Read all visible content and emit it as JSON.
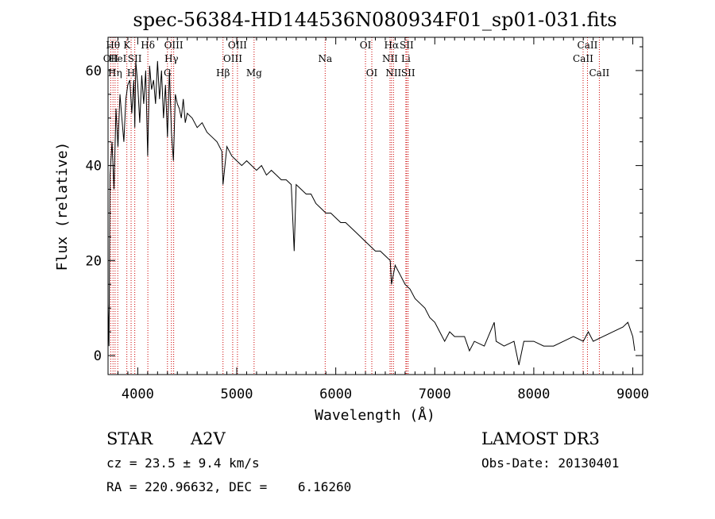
{
  "chart_data": {
    "type": "line",
    "title": "spec-56384-HD144536N080934F01_sp01-031.fits",
    "xlabel": "Wavelength (Å)",
    "ylabel": "Flux (relative)",
    "xlim": [
      3700,
      9100
    ],
    "ylim": [
      -4,
      67
    ],
    "x_ticks": [
      4000,
      5000,
      6000,
      7000,
      8000,
      9000
    ],
    "y_ticks": [
      0,
      20,
      40,
      60
    ],
    "grid": false,
    "series": [
      {
        "name": "spectrum",
        "x": [
          3700,
          3710,
          3720,
          3740,
          3760,
          3780,
          3800,
          3820,
          3840,
          3860,
          3880,
          3900,
          3920,
          3940,
          3960,
          3970,
          3980,
          4000,
          4020,
          4040,
          4060,
          4080,
          4100,
          4120,
          4140,
          4160,
          4180,
          4200,
          4220,
          4240,
          4260,
          4280,
          4300,
          4320,
          4340,
          4360,
          4380,
          4400,
          4420,
          4440,
          4460,
          4480,
          4500,
          4550,
          4600,
          4650,
          4700,
          4750,
          4800,
          4850,
          4861,
          4900,
          4950,
          5000,
          5050,
          5100,
          5150,
          5200,
          5250,
          5300,
          5350,
          5400,
          5450,
          5500,
          5550,
          5580,
          5600,
          5650,
          5700,
          5750,
          5800,
          5850,
          5900,
          5950,
          6000,
          6050,
          6100,
          6150,
          6200,
          6250,
          6300,
          6350,
          6400,
          6450,
          6500,
          6550,
          6563,
          6600,
          6650,
          6700,
          6750,
          6800,
          6850,
          6900,
          6950,
          7000,
          7050,
          7100,
          7150,
          7200,
          7300,
          7350,
          7400,
          7500,
          7600,
          7620,
          7700,
          7800,
          7850,
          7900,
          8000,
          8100,
          8200,
          8300,
          8400,
          8500,
          8550,
          8600,
          8700,
          8800,
          8900,
          8950,
          9000,
          9020
        ],
        "values": [
          11,
          2,
          38,
          45,
          35,
          52,
          44,
          55,
          50,
          45,
          54,
          57,
          58,
          51,
          58,
          48,
          62,
          57,
          49,
          59,
          53,
          60,
          42,
          61,
          56,
          58,
          53,
          62,
          54,
          60,
          50,
          57,
          46,
          60,
          47,
          41,
          55,
          53,
          52,
          50,
          54,
          49,
          51,
          50,
          48,
          49,
          47,
          46,
          45,
          43,
          36,
          44,
          42,
          41,
          40,
          41,
          40,
          39,
          40,
          38,
          39,
          38,
          37,
          37,
          36,
          22,
          36,
          35,
          34,
          34,
          32,
          31,
          30,
          30,
          29,
          28,
          28,
          27,
          26,
          25,
          24,
          23,
          22,
          22,
          21,
          20,
          15,
          19,
          17,
          15,
          14,
          12,
          11,
          10,
          8,
          7,
          5,
          3,
          5,
          4,
          4,
          1,
          3,
          2,
          7,
          3,
          2,
          3,
          -2,
          3,
          3,
          2,
          2,
          3,
          4,
          3,
          5,
          3,
          4,
          5,
          6,
          7,
          4,
          1
        ]
      }
    ],
    "lines": [
      {
        "wavelength": 3727,
        "label": "OII",
        "row": 2
      },
      {
        "wavelength": 3750,
        "label": "Hθ",
        "row": 1
      },
      {
        "wavelength": 3771,
        "label": "Hη",
        "row": 3
      },
      {
        "wavelength": 3798,
        "label": "HeI",
        "row": 2
      },
      {
        "wavelength": 3890,
        "label": "K",
        "row": 1
      },
      {
        "wavelength": 3933,
        "label": "H",
        "row": 3
      },
      {
        "wavelength": 3970,
        "label": "SII",
        "row": 2
      },
      {
        "wavelength": 4102,
        "label": "Hδ",
        "row": 1
      },
      {
        "wavelength": 4300,
        "label": "G",
        "row": 3
      },
      {
        "wavelength": 4340,
        "label": "Hγ",
        "row": 2
      },
      {
        "wavelength": 4363,
        "label": "OIII",
        "row": 1
      },
      {
        "wavelength": 4861,
        "label": "Hβ",
        "row": 3
      },
      {
        "wavelength": 4959,
        "label": "OIII",
        "row": 2
      },
      {
        "wavelength": 5007,
        "label": "OIII",
        "row": 1
      },
      {
        "wavelength": 5175,
        "label": "Mg",
        "row": 3
      },
      {
        "wavelength": 5893,
        "label": "Na",
        "row": 2
      },
      {
        "wavelength": 6300,
        "label": "OI",
        "row": 1
      },
      {
        "wavelength": 6364,
        "label": "OI",
        "row": 3
      },
      {
        "wavelength": 6548,
        "label": "NII",
        "row": 2
      },
      {
        "wavelength": 6563,
        "label": "Hα",
        "row": 1
      },
      {
        "wavelength": 6583,
        "label": "NII",
        "row": 3
      },
      {
        "wavelength": 6708,
        "label": "Li",
        "row": 2
      },
      {
        "wavelength": 6716,
        "label": "SII",
        "row": 1
      },
      {
        "wavelength": 6731,
        "label": "SII",
        "row": 3
      },
      {
        "wavelength": 8498,
        "label": "CaII",
        "row": 2
      },
      {
        "wavelength": 8542,
        "label": "CaII",
        "row": 1
      },
      {
        "wavelength": 8662,
        "label": "CaII",
        "row": 3
      }
    ],
    "line_color": "#cc0000"
  },
  "info": {
    "class": "STAR",
    "subclass": "A2V",
    "survey": "LAMOST DR3",
    "cz": "cz = 23.5 ± 9.4 km/s",
    "obs_date": "Obs-Date: 20130401",
    "radec": "RA = 220.96632, DEC =    6.16260"
  }
}
